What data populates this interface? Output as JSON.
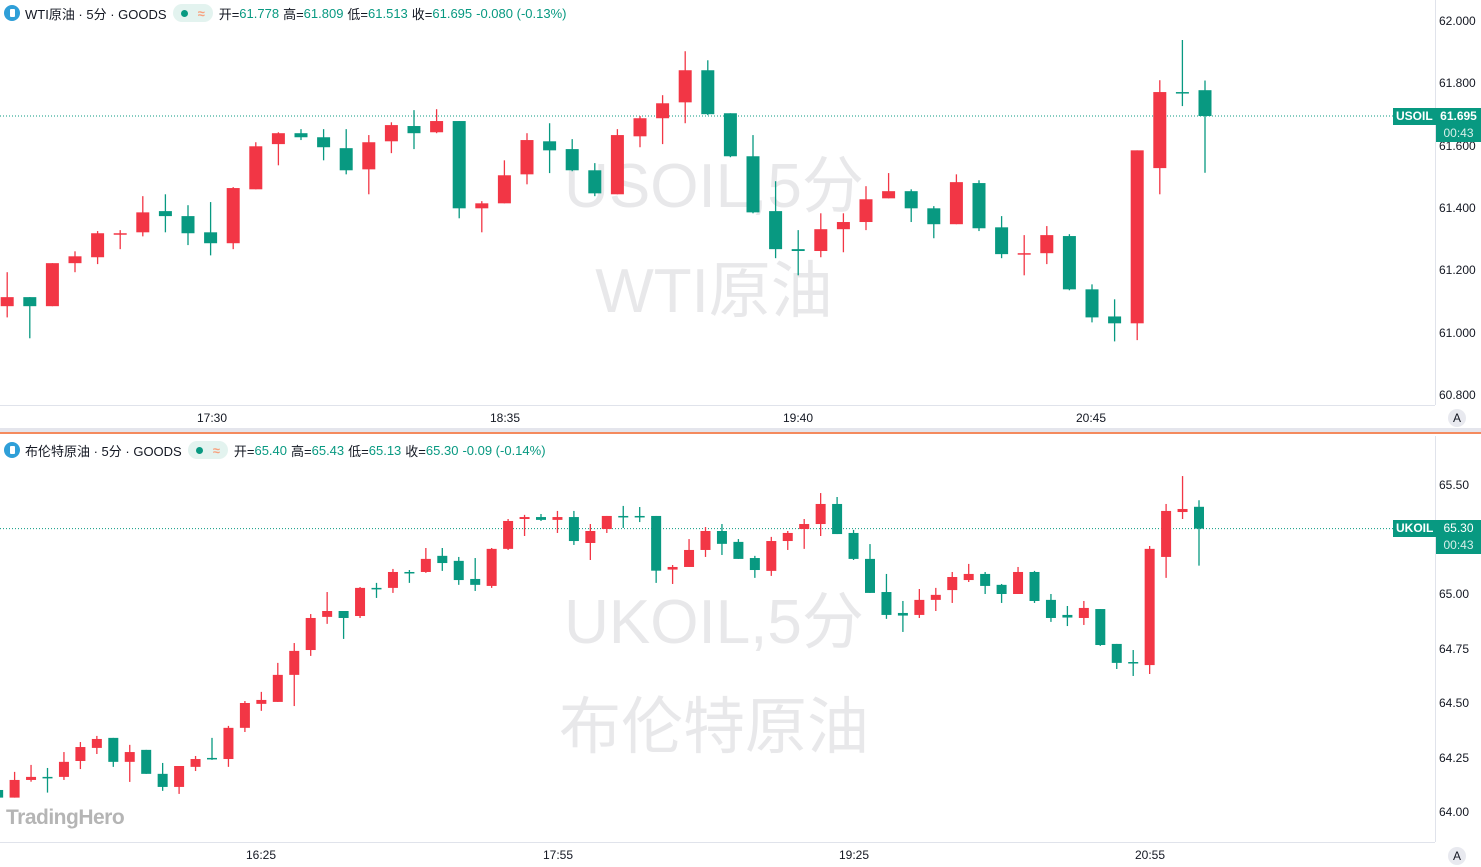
{
  "colors": {
    "up": "#f23645",
    "down": "#089981",
    "accent": "#089981",
    "separator": "#f48a5e"
  },
  "logo": "TradingHero",
  "panes": [
    {
      "symbol_title": "WTI原油 · 5分 · GOODS",
      "watermark_line1": "USOIL,5分",
      "watermark_line2": "WTI原油",
      "ohlc_labels": {
        "open": "开=",
        "high": "高=",
        "low": "低=",
        "close": "收="
      },
      "open": "61.778",
      "high": "61.809",
      "low": "61.513",
      "close": "61.695",
      "change": "-0.080 (-0.13%)",
      "price_tag": {
        "ticker": "USOIL",
        "price": "61.695",
        "countdown": "00:43"
      },
      "last_price": 61.695,
      "y_ticks": [
        "62.000",
        "61.800",
        "61.600",
        "61.400",
        "61.200",
        "61.000",
        "60.800"
      ],
      "y_range": [
        60.8,
        62.0
      ],
      "x_ticks": [
        "17:30",
        "18:35",
        "19:40",
        "20:45"
      ],
      "auto_scale_button": "A",
      "chart_data": {
        "type": "candlestick",
        "interval": "5分",
        "ohlc": [
          [
            61.085,
            61.194,
            61.049,
            61.114
          ],
          [
            61.114,
            61.114,
            60.982,
            61.085
          ],
          [
            61.085,
            61.223,
            61.085,
            61.223
          ],
          [
            61.223,
            61.261,
            61.194,
            61.245
          ],
          [
            61.242,
            61.326,
            61.22,
            61.319
          ],
          [
            61.316,
            61.329,
            61.268,
            61.319
          ],
          [
            61.322,
            61.438,
            61.309,
            61.386
          ],
          [
            61.39,
            61.444,
            61.322,
            61.374
          ],
          [
            61.374,
            61.409,
            61.281,
            61.319
          ],
          [
            61.322,
            61.419,
            61.248,
            61.287
          ],
          [
            61.287,
            61.467,
            61.268,
            61.464
          ],
          [
            61.46,
            61.611,
            61.46,
            61.598
          ],
          [
            61.605,
            61.643,
            61.537,
            61.64
          ],
          [
            61.64,
            61.653,
            61.618,
            61.627
          ],
          [
            61.627,
            61.653,
            61.553,
            61.595
          ],
          [
            61.592,
            61.653,
            61.508,
            61.521
          ],
          [
            61.524,
            61.634,
            61.444,
            61.611
          ],
          [
            61.614,
            61.675,
            61.576,
            61.666
          ],
          [
            61.663,
            61.714,
            61.589,
            61.64
          ],
          [
            61.643,
            61.717,
            61.64,
            61.679
          ],
          [
            61.679,
            61.679,
            61.367,
            61.399
          ],
          [
            61.399,
            61.422,
            61.322,
            61.415
          ],
          [
            61.415,
            61.553,
            61.415,
            61.505
          ],
          [
            61.508,
            61.64,
            61.476,
            61.618
          ],
          [
            61.614,
            61.672,
            61.512,
            61.585
          ],
          [
            61.589,
            61.621,
            61.518,
            61.521
          ],
          [
            61.521,
            61.544,
            61.438,
            61.447
          ],
          [
            61.444,
            61.653,
            61.444,
            61.634
          ],
          [
            61.63,
            61.695,
            61.595,
            61.688
          ],
          [
            61.688,
            61.762,
            61.605,
            61.736
          ],
          [
            61.739,
            61.903,
            61.672,
            61.842
          ],
          [
            61.842,
            61.874,
            61.698,
            61.701
          ],
          [
            61.704,
            61.704,
            61.563,
            61.566
          ],
          [
            61.566,
            61.634,
            61.383,
            61.386
          ],
          [
            61.39,
            61.486,
            61.239,
            61.268
          ],
          [
            61.268,
            61.329,
            61.184,
            61.262
          ],
          [
            61.262,
            61.383,
            61.242,
            61.332
          ],
          [
            61.332,
            61.383,
            61.258,
            61.355
          ],
          [
            61.355,
            61.47,
            61.329,
            61.428
          ],
          [
            61.431,
            61.512,
            61.431,
            61.454
          ],
          [
            61.454,
            61.46,
            61.355,
            61.399
          ],
          [
            61.399,
            61.406,
            61.303,
            61.348
          ],
          [
            61.348,
            61.508,
            61.348,
            61.483
          ],
          [
            61.48,
            61.489,
            61.326,
            61.335
          ],
          [
            61.338,
            61.374,
            61.239,
            61.252
          ],
          [
            61.252,
            61.313,
            61.184,
            61.255
          ],
          [
            61.255,
            61.342,
            61.22,
            61.313
          ],
          [
            61.31,
            61.316,
            61.136,
            61.139
          ],
          [
            61.139,
            61.155,
            61.033,
            61.049
          ],
          [
            61.052,
            61.107,
            60.972,
            61.03
          ],
          [
            61.03,
            61.585,
            60.976,
            61.585
          ],
          [
            61.528,
            61.81,
            61.444,
            61.772
          ],
          [
            61.772,
            61.939,
            61.727,
            61.768
          ],
          [
            61.778,
            61.809,
            61.513,
            61.695
          ]
        ]
      }
    },
    {
      "symbol_title": "布伦特原油 · 5分 · GOODS",
      "watermark_line1": "UKOIL,5分",
      "watermark_line2": "布伦特原油",
      "ohlc_labels": {
        "open": "开=",
        "high": "高=",
        "low": "低=",
        "close": "收="
      },
      "open": "65.40",
      "high": "65.43",
      "low": "65.13",
      "close": "65.30",
      "change": "-0.09 (-0.14%)",
      "price_tag": {
        "ticker": "UKOIL",
        "price": "65.30",
        "countdown": "00:43"
      },
      "last_price": 65.3,
      "y_ticks": [
        "65.50",
        "65.00",
        "64.75",
        "64.50",
        "64.25",
        "64.00"
      ],
      "y_range": [
        64.0,
        65.5
      ],
      "x_ticks": [
        "16:25",
        "17:55",
        "19:25",
        "20:55"
      ],
      "auto_scale_button": "A",
      "chart_data": {
        "type": "candlestick",
        "interval": "5分",
        "ohlc": [
          [
            64.101,
            64.101,
            64.066,
            64.066
          ],
          [
            64.066,
            64.184,
            64.066,
            64.147
          ],
          [
            64.147,
            64.216,
            64.139,
            64.161
          ],
          [
            64.161,
            64.202,
            64.089,
            64.155
          ],
          [
            64.161,
            64.275,
            64.147,
            64.23
          ],
          [
            64.234,
            64.321,
            64.197,
            64.298
          ],
          [
            64.294,
            64.349,
            64.266,
            64.335
          ],
          [
            64.34,
            64.34,
            64.207,
            64.23
          ],
          [
            64.23,
            64.308,
            64.138,
            64.275
          ],
          [
            64.285,
            64.285,
            64.175,
            64.175
          ],
          [
            64.175,
            64.225,
            64.097,
            64.115
          ],
          [
            64.115,
            64.211,
            64.083,
            64.211
          ],
          [
            64.207,
            64.257,
            64.188,
            64.243
          ],
          [
            64.248,
            64.34,
            64.239,
            64.243
          ],
          [
            64.243,
            64.395,
            64.207,
            64.386
          ],
          [
            64.386,
            64.509,
            64.367,
            64.5
          ],
          [
            64.496,
            64.551,
            64.464,
            64.514
          ],
          [
            64.505,
            64.684,
            64.505,
            64.629
          ],
          [
            64.629,
            64.775,
            64.486,
            64.739
          ],
          [
            64.743,
            64.908,
            64.716,
            64.89
          ],
          [
            64.895,
            65.009,
            64.863,
            64.922
          ],
          [
            64.922,
            64.922,
            64.794,
            64.89
          ],
          [
            64.899,
            65.032,
            64.89,
            65.028
          ],
          [
            65.028,
            65.051,
            64.982,
            65.025
          ],
          [
            65.028,
            65.115,
            65.005,
            65.101
          ],
          [
            65.101,
            65.11,
            65.051,
            65.098
          ],
          [
            65.101,
            65.211,
            65.097,
            65.161
          ],
          [
            65.175,
            65.211,
            65.106,
            65.142
          ],
          [
            65.152,
            65.17,
            65.042,
            65.064
          ],
          [
            65.069,
            65.165,
            65.014,
            65.042
          ],
          [
            65.037,
            65.211,
            65.028,
            65.207
          ],
          [
            65.207,
            65.344,
            65.202,
            65.335
          ],
          [
            65.344,
            65.363,
            65.266,
            65.353
          ],
          [
            65.353,
            65.367,
            65.335,
            65.34
          ],
          [
            65.34,
            65.381,
            65.28,
            65.353
          ],
          [
            65.353,
            65.381,
            65.225,
            65.243
          ],
          [
            65.234,
            65.321,
            65.156,
            65.289
          ],
          [
            65.298,
            65.358,
            65.28,
            65.358
          ],
          [
            65.358,
            65.404,
            65.303,
            65.355
          ],
          [
            65.358,
            65.399,
            65.33,
            65.355
          ],
          [
            65.358,
            65.358,
            65.051,
            65.107
          ],
          [
            65.112,
            65.133,
            65.046,
            65.124
          ],
          [
            65.124,
            65.252,
            65.124,
            65.202
          ],
          [
            65.202,
            65.307,
            65.17,
            65.289
          ],
          [
            65.289,
            65.321,
            65.179,
            65.23
          ],
          [
            65.239,
            65.252,
            65.161,
            65.161
          ],
          [
            65.165,
            65.175,
            65.074,
            65.11
          ],
          [
            65.106,
            65.262,
            65.083,
            65.243
          ],
          [
            65.243,
            65.289,
            65.202,
            65.28
          ],
          [
            65.298,
            65.344,
            65.207,
            65.321
          ],
          [
            65.321,
            65.463,
            65.266,
            65.413
          ],
          [
            65.413,
            65.445,
            65.275,
            65.275
          ],
          [
            65.28,
            65.294,
            65.156,
            65.161
          ],
          [
            65.161,
            65.229,
            65.005,
            65.005
          ],
          [
            65.009,
            65.092,
            64.886,
            64.904
          ],
          [
            64.913,
            64.968,
            64.826,
            64.901
          ],
          [
            64.904,
            65.023,
            64.89,
            64.973
          ],
          [
            64.973,
            65.028,
            64.922,
            64.996
          ],
          [
            65.018,
            65.101,
            64.959,
            65.078
          ],
          [
            65.064,
            65.138,
            65.055,
            65.092
          ],
          [
            65.092,
            65.101,
            65.0,
            65.037
          ],
          [
            65.042,
            65.046,
            64.959,
            65.0
          ],
          [
            65.0,
            65.124,
            65.0,
            65.101
          ],
          [
            65.101,
            65.106,
            64.959,
            64.968
          ],
          [
            64.973,
            65.0,
            64.872,
            64.89
          ],
          [
            64.904,
            64.945,
            64.853,
            64.892
          ],
          [
            64.89,
            64.968,
            64.858,
            64.936
          ],
          [
            64.931,
            64.931,
            64.762,
            64.766
          ],
          [
            64.771,
            64.771,
            64.656,
            64.684
          ],
          [
            64.688,
            64.743,
            64.624,
            64.682
          ],
          [
            64.674,
            65.22,
            64.633,
            65.207
          ],
          [
            65.17,
            65.413,
            65.074,
            65.381
          ],
          [
            65.376,
            65.541,
            65.344,
            65.39
          ],
          [
            65.4,
            65.43,
            65.13,
            65.3
          ]
        ]
      }
    }
  ]
}
